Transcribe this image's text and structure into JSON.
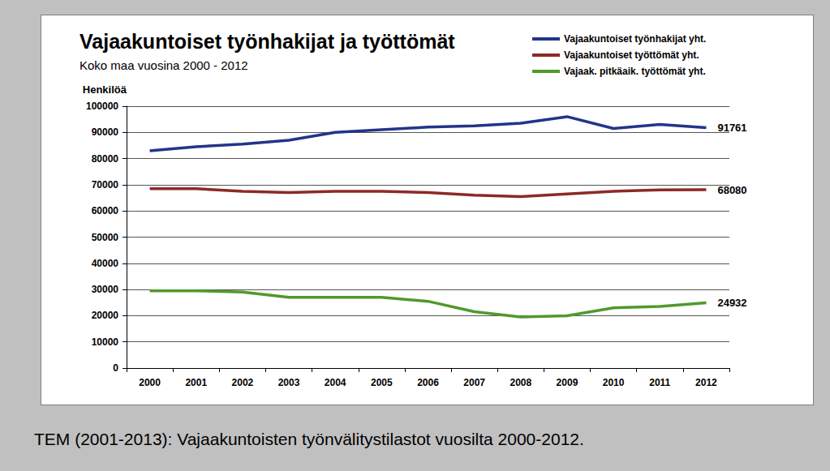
{
  "chart_data": {
    "type": "line",
    "title": "Vajaakuntoiset työnhakijat ja työttömät",
    "subtitle": "Koko maa vuosina 2000 - 2012",
    "y_label": "Henkilöä",
    "caption": "TEM (2001-2013): Vajaakuntoisten työnvälitystilastot vuosilta 2000-2012.",
    "categories": [
      "2000",
      "2001",
      "2002",
      "2003",
      "2004",
      "2005",
      "2006",
      "2007",
      "2008",
      "2009",
      "2010",
      "2011",
      "2012"
    ],
    "series": [
      {
        "name": "Vajaakuntoiset työnhakijat yht.",
        "color": "#22358a",
        "values": [
          83000,
          84500,
          85500,
          87000,
          90000,
          91000,
          92000,
          92500,
          93500,
          96000,
          91500,
          93000,
          91761
        ],
        "value_labels": [
          null,
          null,
          null,
          null,
          null,
          null,
          null,
          null,
          null,
          null,
          null,
          null,
          "91761"
        ]
      },
      {
        "name": "Vajaakuntoiset työttömät yht.",
        "color": "#8c2a26",
        "values": [
          68500,
          68500,
          67500,
          67000,
          67500,
          67500,
          67000,
          66000,
          65500,
          66500,
          67500,
          68000,
          68080
        ],
        "value_labels": [
          null,
          null,
          null,
          null,
          null,
          null,
          null,
          null,
          null,
          null,
          null,
          null,
          "68080"
        ]
      },
      {
        "name": "Vajaak. pitkäaik. työttömät yht.",
        "color": "#4f9a2b",
        "values": [
          29500,
          29500,
          29000,
          27000,
          27000,
          27000,
          25500,
          21500,
          19500,
          20000,
          23000,
          23500,
          24932
        ],
        "value_labels": [
          null,
          null,
          null,
          null,
          null,
          null,
          null,
          null,
          null,
          null,
          null,
          null,
          "24932"
        ]
      }
    ],
    "ylim": [
      0,
      100000
    ],
    "yticks": [
      0,
      10000,
      20000,
      30000,
      40000,
      50000,
      60000,
      70000,
      80000,
      90000,
      100000
    ],
    "grid": true,
    "legend": "top-right"
  }
}
